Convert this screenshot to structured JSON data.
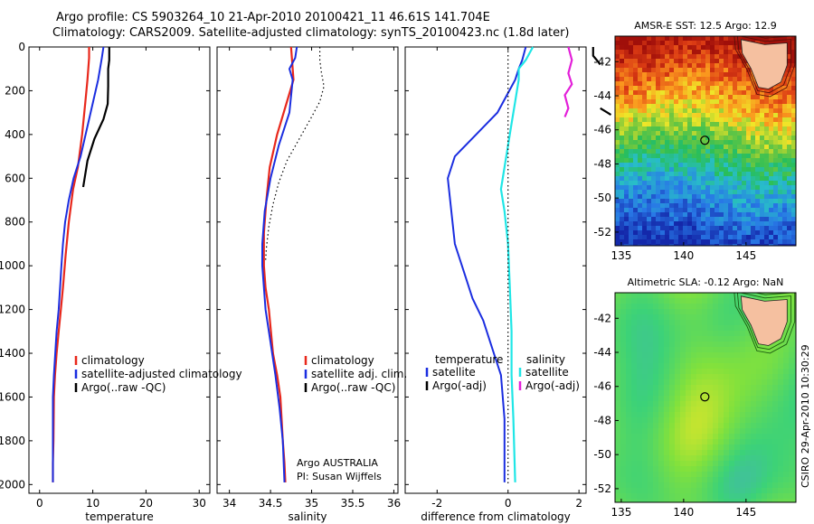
{
  "header": {
    "line1": "Argo profile: CS 5903264_10 21-Apr-2010 20100421_11 46.61S 141.704E",
    "line2": "Climatology: CARS2009. Satellite-adjusted climatology: synTS_20100423.nc (1.8d later)"
  },
  "credit": "CSIRO 29-Apr-2010 10:30:29",
  "annotation": {
    "line1": "Argo AUSTRALIA",
    "line2": "PI: Susan Wijffels"
  },
  "colors": {
    "red": "#e8281c",
    "blue": "#1a2de0",
    "black": "#000000",
    "cyan": "#1fe6e6",
    "magenta": "#e31fd9"
  },
  "chart_data": [
    {
      "id": "temperature",
      "type": "line",
      "xlabel": "temperature",
      "xlim": [
        -2,
        32
      ],
      "xticks": [
        0,
        10,
        20,
        30
      ],
      "ylim": [
        2040,
        0
      ],
      "yticks": [
        0,
        200,
        400,
        600,
        800,
        1000,
        1200,
        1400,
        1600,
        1800,
        2000
      ],
      "legend": [
        "climatology",
        "satellite-adjusted climatology",
        "Argo(..raw -QC)"
      ],
      "series": [
        {
          "name": "climatology",
          "color": "red",
          "style": "solid",
          "x": [
            9.3,
            9.3,
            9.0,
            8.6,
            8.0,
            7.2,
            6.3,
            5.5,
            4.9,
            4.4,
            4.0,
            3.6,
            3.2,
            2.9,
            2.7,
            2.6,
            2.5,
            2.5
          ],
          "y": [
            0,
            50,
            150,
            250,
            400,
            550,
            650,
            800,
            950,
            1100,
            1200,
            1300,
            1400,
            1500,
            1600,
            1800,
            1900,
            1990
          ]
        },
        {
          "name": "satellite-adjusted climatology",
          "color": "blue",
          "style": "solid",
          "x": [
            12.0,
            11.7,
            11.0,
            9.6,
            7.7,
            6.4,
            5.5,
            4.8,
            4.4,
            4.1,
            3.6,
            3.2,
            2.7,
            2.5,
            2.5,
            2.5
          ],
          "y": [
            0,
            50,
            150,
            300,
            500,
            600,
            700,
            800,
            900,
            1000,
            1200,
            1300,
            1500,
            1600,
            1800,
            1990
          ]
        },
        {
          "name": "Argo(..raw -QC)",
          "color": "black",
          "style": "solid",
          "x": [
            13.1,
            13.1,
            12.9,
            12.9,
            12.8,
            12.0,
            10.3,
            9.0,
            8.2
          ],
          "y": [
            0,
            60,
            100,
            180,
            260,
            330,
            420,
            520,
            640
          ]
        }
      ]
    },
    {
      "id": "salinity",
      "type": "line",
      "xlabel": "salinity",
      "xlim": [
        33.85,
        36.05
      ],
      "xticks": [
        34,
        34.5,
        35,
        35.5,
        36
      ],
      "ylim": [
        2040,
        0
      ],
      "yticks": [
        0,
        200,
        400,
        600,
        800,
        1000,
        1200,
        1400,
        1600,
        1800,
        2000
      ],
      "legend": [
        "climatology",
        "satellite adj. clim.",
        "Argo(..raw -QC)"
      ],
      "series": [
        {
          "name": "climatology",
          "color": "red",
          "style": "solid",
          "x": [
            34.75,
            34.76,
            34.78,
            34.7,
            34.58,
            34.49,
            34.45,
            34.42,
            34.42,
            34.44,
            34.48,
            34.53,
            34.58,
            34.62,
            34.65,
            34.67,
            34.68
          ],
          "y": [
            0,
            50,
            150,
            250,
            400,
            550,
            700,
            850,
            1000,
            1100,
            1200,
            1400,
            1500,
            1600,
            1800,
            1900,
            1990
          ]
        },
        {
          "name": "satellite adj. clim.",
          "color": "blue",
          "style": "solid",
          "x": [
            34.82,
            34.8,
            34.73,
            34.77,
            34.73,
            34.6,
            34.5,
            34.43,
            34.4,
            34.4,
            34.44,
            34.5,
            34.56,
            34.61,
            34.65,
            34.67
          ],
          "y": [
            0,
            50,
            100,
            150,
            300,
            450,
            600,
            750,
            900,
            1000,
            1200,
            1350,
            1500,
            1650,
            1800,
            1990
          ]
        },
        {
          "name": "Argo(..raw -QC)",
          "color": "black",
          "style": "dotted",
          "x": [
            35.1,
            35.1,
            35.12,
            35.15,
            35.1,
            35.0,
            34.85,
            34.7,
            34.6,
            34.53,
            34.48,
            34.45,
            34.44
          ],
          "y": [
            0,
            60,
            120,
            180,
            250,
            320,
            420,
            520,
            620,
            720,
            820,
            920,
            980
          ]
        }
      ]
    },
    {
      "id": "difference",
      "type": "line",
      "xlabel": "difference from climatology",
      "xlim": [
        -2.9,
        2.2
      ],
      "xticks": [
        -2,
        0,
        2
      ],
      "ylim": [
        2040,
        0
      ],
      "yticks": [
        0,
        200,
        400,
        600,
        800,
        1000,
        1200,
        1400,
        1600,
        1800,
        2000
      ],
      "legend_left_title": "temperature",
      "legend_right_title": "salinity",
      "legend": [
        "satellite",
        "Argo(-adj)",
        "satellite",
        "Argo(-adj)"
      ],
      "series": [
        {
          "name": "temperature satellite",
          "color": "blue",
          "style": "solid",
          "x": [
            0.5,
            0.4,
            0.3,
            0.2,
            -0.3,
            -0.9,
            -1.5,
            -1.7,
            -1.6,
            -1.5,
            -1.4,
            -1.2,
            -1.0,
            -0.7,
            -0.4,
            -0.2,
            -0.1,
            -0.1
          ],
          "y": [
            0,
            60,
            100,
            150,
            300,
            400,
            500,
            600,
            750,
            900,
            950,
            1050,
            1150,
            1250,
            1400,
            1500,
            1700,
            1990
          ]
        },
        {
          "name": "temperature Argo(-adj)",
          "color": "black",
          "style": "solid",
          "x": [
            2.4,
            2.4,
            2.5,
            2.6
          ],
          "y": [
            0,
            40,
            60,
            80
          ]
        },
        {
          "name": "salinity satellite",
          "color": "cyan",
          "style": "solid",
          "x": [
            0.7,
            0.5,
            0.3,
            0.3,
            0.2,
            0.1,
            0.0,
            -0.1,
            -0.2,
            -0.1,
            0.0,
            0.05,
            0.1,
            0.1,
            0.15,
            0.2
          ],
          "y": [
            0,
            60,
            100,
            150,
            250,
            350,
            450,
            550,
            650,
            750,
            900,
            1100,
            1300,
            1500,
            1700,
            1990
          ]
        },
        {
          "name": "salinity Argo(-adj)",
          "color": "magenta",
          "style": "solid",
          "x": [
            1.7,
            1.8,
            1.7,
            1.8,
            1.6,
            1.7,
            1.6
          ],
          "y": [
            0,
            60,
            120,
            170,
            220,
            280,
            320
          ]
        },
        {
          "name": "temperature Argo(-adj) deep",
          "color": "black",
          "style": "solid",
          "x": [
            2.6,
            2.8,
            2.9
          ],
          "y": [
            280,
            300,
            310
          ]
        },
        {
          "name": "zero reference",
          "color": "black",
          "style": "dotted",
          "x": [
            0,
            0
          ],
          "y": [
            0,
            2000
          ]
        }
      ]
    },
    {
      "id": "sst_map",
      "type": "heatmap",
      "title": "AMSR-E SST: 12.5 Argo: 12.9",
      "xlim": [
        134.5,
        149
      ],
      "xticks": [
        135,
        140,
        145
      ],
      "ylim": [
        -52.8,
        -40.5
      ],
      "yticks": [
        -42,
        -44,
        -46,
        -48,
        -50,
        -52
      ],
      "float_position": [
        141.7,
        -46.61
      ]
    },
    {
      "id": "sla_map",
      "type": "heatmap",
      "title": "Altimetric SLA: -0.12 Argo: NaN",
      "xlim": [
        134.5,
        149
      ],
      "xticks": [
        135,
        140,
        145
      ],
      "ylim": [
        -52.8,
        -40.5
      ],
      "yticks": [
        -42,
        -44,
        -46,
        -48,
        -50,
        -52
      ],
      "float_position": [
        141.7,
        -46.61
      ]
    }
  ]
}
